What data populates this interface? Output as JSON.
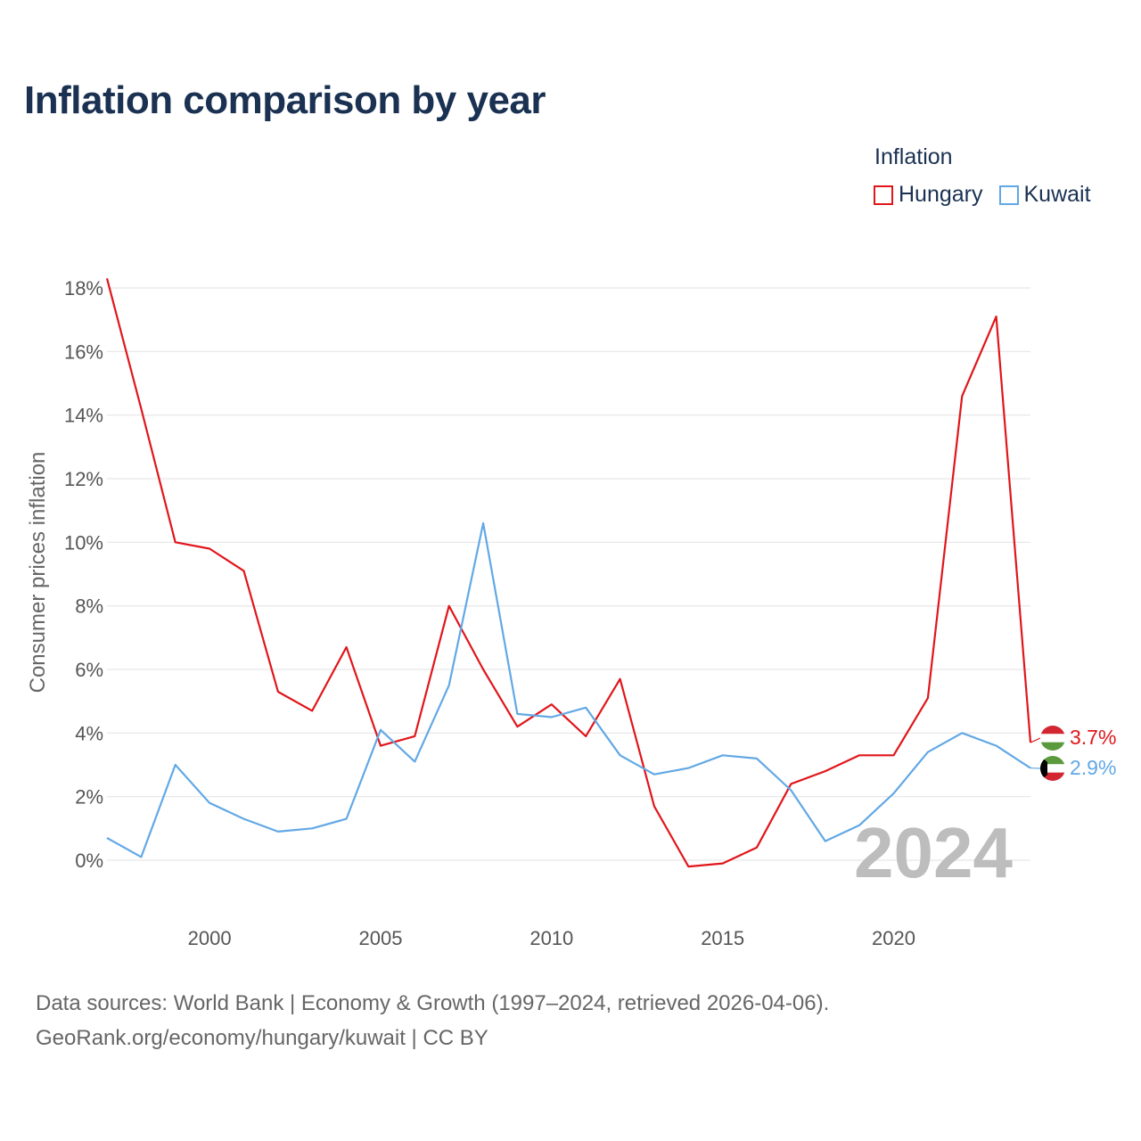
{
  "title": "Inflation comparison by year",
  "legend_title": "Inflation",
  "footer": {
    "line1": "Data sources: World Bank | Economy & Growth (1997–2024, retrieved 2026-04-06).",
    "line2": "GeoRank.org/economy/hungary/kuwait | CC BY"
  },
  "chart_data": {
    "type": "line",
    "title": "Inflation comparison by year",
    "xlabel": "",
    "ylabel": "Consumer prices inflation",
    "xlim": [
      1997,
      2024
    ],
    "ylim": [
      -1.2,
      18.5
    ],
    "x_ticks": [
      2000,
      2005,
      2010,
      2015,
      2020
    ],
    "y_ticks": [
      0,
      2,
      4,
      6,
      8,
      10,
      12,
      14,
      16,
      18
    ],
    "y_tick_labels": [
      "0%",
      "2%",
      "4%",
      "6%",
      "8%",
      "10%",
      "12%",
      "14%",
      "16%",
      "18%"
    ],
    "grid": true,
    "legend_position": "top-right",
    "watermark_year": "2024",
    "x": [
      1997,
      1998,
      1999,
      2000,
      2001,
      2002,
      2003,
      2004,
      2005,
      2006,
      2007,
      2008,
      2009,
      2010,
      2011,
      2012,
      2013,
      2014,
      2015,
      2016,
      2017,
      2018,
      2019,
      2020,
      2021,
      2022,
      2023,
      2024
    ],
    "series": [
      {
        "name": "Hungary",
        "color": "#e0161b",
        "end_label": "3.7%",
        "values": [
          18.3,
          14.2,
          10.0,
          9.8,
          9.1,
          5.3,
          4.7,
          6.7,
          3.6,
          3.9,
          8.0,
          6.0,
          4.2,
          4.9,
          3.9,
          5.7,
          1.7,
          -0.2,
          -0.1,
          0.4,
          2.4,
          2.8,
          3.3,
          3.3,
          5.1,
          14.6,
          17.1,
          3.7
        ]
      },
      {
        "name": "Kuwait",
        "color": "#62a8e5",
        "end_label": "2.9%",
        "values": [
          0.7,
          0.1,
          3.0,
          1.8,
          1.3,
          0.9,
          1.0,
          1.3,
          4.1,
          3.1,
          5.5,
          10.6,
          4.6,
          4.5,
          4.8,
          3.3,
          2.7,
          2.9,
          3.3,
          3.2,
          2.2,
          0.6,
          1.1,
          2.1,
          3.4,
          4.0,
          3.6,
          2.9
        ]
      }
    ]
  }
}
